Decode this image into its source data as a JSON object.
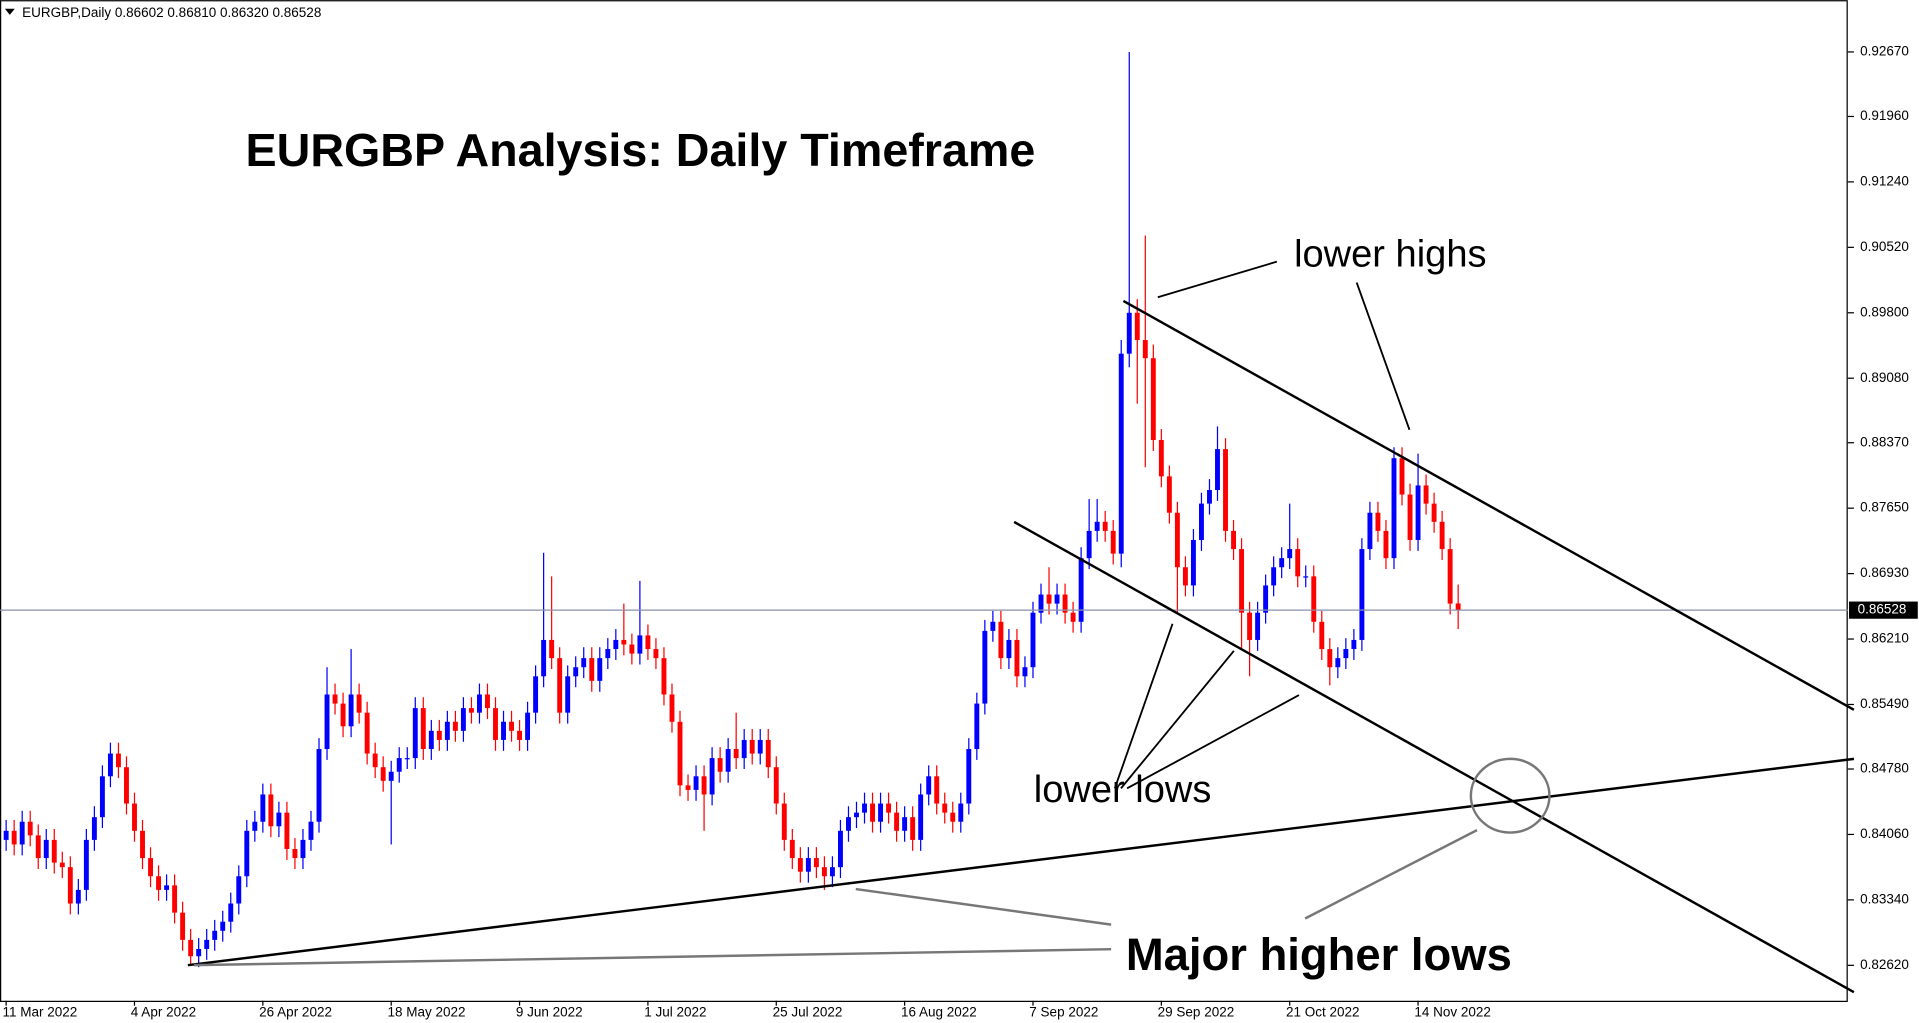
{
  "chart_data": {
    "type": "candlestick",
    "header": "EURGBP,Daily  0.86602 0.86810 0.86320 0.86528",
    "title": "EURGBP Analysis: Daily Timeframe",
    "annotations": [
      "lower highs",
      "lower lows",
      "Major higher lows"
    ],
    "up_color": "#0000ff",
    "down_color": "#ff0000",
    "ylim": [
      0.8223,
      0.9324
    ],
    "yticks": [
      {
        "value": 0.8262,
        "label": "0.82620"
      },
      {
        "value": 0.8334,
        "label": "0.83340"
      },
      {
        "value": 0.8406,
        "label": "0.84060"
      },
      {
        "value": 0.8478,
        "label": "0.84780"
      },
      {
        "value": 0.8549,
        "label": "0.85490"
      },
      {
        "value": 0.8621,
        "label": "0.86210"
      },
      {
        "value": 0.8693,
        "label": "0.86930"
      },
      {
        "value": 0.8765,
        "label": "0.87650"
      },
      {
        "value": 0.8837,
        "label": "0.88370"
      },
      {
        "value": 0.8908,
        "label": "0.89080"
      },
      {
        "value": 0.898,
        "label": "0.89800"
      },
      {
        "value": 0.9052,
        "label": "0.90520"
      },
      {
        "value": 0.9124,
        "label": "0.91240"
      },
      {
        "value": 0.9196,
        "label": "0.91960"
      },
      {
        "value": 0.9267,
        "label": "0.92670"
      }
    ],
    "last_price": 0.86528,
    "categories": [
      "11 Mar 2022",
      null,
      null,
      null,
      null,
      null,
      null,
      null,
      null,
      null,
      null,
      null,
      null,
      null,
      null,
      null,
      "4 Apr 2022",
      null,
      null,
      null,
      null,
      null,
      null,
      null,
      null,
      null,
      null,
      null,
      null,
      null,
      null,
      null,
      "26 Apr 2022",
      null,
      null,
      null,
      null,
      null,
      null,
      null,
      null,
      null,
      null,
      null,
      null,
      null,
      null,
      null,
      "18 May 2022",
      null,
      null,
      null,
      null,
      null,
      null,
      null,
      null,
      null,
      null,
      null,
      null,
      null,
      null,
      null,
      "9 Jun 2022",
      null,
      null,
      null,
      null,
      null,
      null,
      null,
      null,
      null,
      null,
      null,
      null,
      null,
      null,
      null,
      "1 Jul 2022",
      null,
      null,
      null,
      null,
      null,
      null,
      null,
      null,
      null,
      null,
      null,
      null,
      null,
      null,
      null,
      "25 Jul 2022",
      null,
      null,
      null,
      null,
      null,
      null,
      null,
      null,
      null,
      null,
      null,
      null,
      null,
      null,
      null,
      "16 Aug 2022",
      null,
      null,
      null,
      null,
      null,
      null,
      null,
      null,
      null,
      null,
      null,
      null,
      null,
      null,
      null,
      "7 Sep 2022",
      null,
      null,
      null,
      null,
      null,
      null,
      null,
      null,
      null,
      null,
      null,
      null,
      null,
      null,
      null,
      "29 Sep 2022",
      null,
      null,
      null,
      null,
      null,
      null,
      null,
      null,
      null,
      null,
      null,
      null,
      null,
      null,
      null,
      "21 Oct 2022",
      null,
      null,
      null,
      null,
      null,
      null,
      null,
      null,
      null,
      null,
      null,
      null,
      null,
      null,
      null,
      "14 Nov 2022",
      null,
      null,
      null,
      null,
      null
    ],
    "open": [
      0.84,
      0.841,
      0.8395,
      0.842,
      0.8405,
      0.838,
      0.84,
      0.8375,
      0.837,
      0.833,
      0.8345,
      0.84,
      0.8425,
      0.847,
      0.8495,
      0.848,
      0.844,
      0.841,
      0.838,
      0.836,
      0.8345,
      0.835,
      0.832,
      0.829,
      0.8272,
      0.828,
      0.829,
      0.83,
      0.831,
      0.833,
      0.836,
      0.841,
      0.842,
      0.845,
      0.8415,
      0.843,
      0.839,
      0.838,
      0.84,
      0.842,
      0.85,
      0.856,
      0.855,
      0.8525,
      0.856,
      0.854,
      0.8495,
      0.848,
      0.8465,
      0.8475,
      0.849,
      0.849,
      0.8545,
      0.85,
      0.852,
      0.851,
      0.853,
      0.852,
      0.8545,
      0.854,
      0.856,
      0.8545,
      0.851,
      0.853,
      0.852,
      0.851,
      0.854,
      0.858,
      0.862,
      0.86,
      0.854,
      0.858,
      0.859,
      0.86,
      0.8575,
      0.86,
      0.861,
      0.862,
      0.8615,
      0.8605,
      0.8625,
      0.861,
      0.86,
      0.856,
      0.853,
      0.846,
      0.8455,
      0.847,
      0.845,
      0.849,
      0.8475,
      0.85,
      0.849,
      0.851,
      0.8495,
      0.851,
      0.848,
      0.844,
      0.84,
      0.838,
      0.8365,
      0.838,
      0.837,
      0.836,
      0.837,
      0.841,
      0.8425,
      0.843,
      0.844,
      0.842,
      0.844,
      0.843,
      0.841,
      0.8425,
      0.84,
      0.845,
      0.847,
      0.844,
      0.843,
      0.842,
      0.844,
      0.85,
      0.855,
      0.863,
      0.864,
      0.86,
      0.862,
      0.858,
      0.859,
      0.865,
      0.867,
      0.866,
      0.867,
      0.865,
      0.864,
      0.871,
      0.874,
      0.875,
      0.874,
      0.8715,
      0.8935,
      0.898,
      0.895,
      0.893,
      0.884,
      0.88,
      0.876,
      0.87,
      0.868,
      0.873,
      0.877,
      0.8785,
      0.883,
      0.874,
      0.872,
      0.865,
      0.862,
      0.865,
      0.868,
      0.87,
      0.871,
      0.872,
      0.869,
      0.869,
      0.864,
      0.861,
      0.859,
      0.86,
      0.861,
      0.862,
      0.872,
      0.876,
      0.874,
      0.871,
      0.882,
      0.878,
      0.873,
      0.879,
      0.877,
      0.875,
      0.872,
      0.86602
    ],
    "high": [
      0.8422,
      0.8422,
      0.8432,
      0.8432,
      0.8417,
      0.8412,
      0.8412,
      0.8387,
      0.8382,
      0.8357,
      0.8412,
      0.8437,
      0.8482,
      0.8507,
      0.8507,
      0.8492,
      0.8452,
      0.8422,
      0.8392,
      0.8372,
      0.8362,
      0.8362,
      0.8332,
      0.8302,
      0.8292,
      0.8302,
      0.8312,
      0.8322,
      0.8342,
      0.8372,
      0.8422,
      0.8432,
      0.8462,
      0.8462,
      0.8442,
      0.8442,
      0.8402,
      0.8412,
      0.8432,
      0.8512,
      0.859,
      0.8572,
      0.8562,
      0.861,
      0.8572,
      0.8552,
      0.8507,
      0.8492,
      0.8487,
      0.8502,
      0.8502,
      0.8557,
      0.8557,
      0.8532,
      0.8532,
      0.8542,
      0.8542,
      0.8557,
      0.8557,
      0.8572,
      0.8572,
      0.8557,
      0.8542,
      0.8542,
      0.8532,
      0.8552,
      0.8592,
      0.8716,
      0.869,
      0.8612,
      0.8592,
      0.8602,
      0.8612,
      0.8612,
      0.8612,
      0.8622,
      0.8632,
      0.866,
      0.8627,
      0.8685,
      0.8637,
      0.8622,
      0.8612,
      0.8572,
      0.8542,
      0.8472,
      0.8482,
      0.8482,
      0.8502,
      0.8502,
      0.8512,
      0.854,
      0.8522,
      0.8522,
      0.8522,
      0.8522,
      0.8492,
      0.8452,
      0.8412,
      0.8392,
      0.8392,
      0.8392,
      0.8382,
      0.8382,
      0.8422,
      0.8437,
      0.8442,
      0.8452,
      0.8452,
      0.8452,
      0.8452,
      0.8442,
      0.8437,
      0.8437,
      0.8462,
      0.8482,
      0.8482,
      0.8452,
      0.8442,
      0.8452,
      0.8512,
      0.8562,
      0.8642,
      0.8652,
      0.8652,
      0.8632,
      0.8632,
      0.8602,
      0.8662,
      0.8682,
      0.87,
      0.8682,
      0.8682,
      0.8662,
      0.8722,
      0.8775,
      0.8775,
      0.8762,
      0.8752,
      0.895,
      0.9267,
      0.8995,
      0.9065,
      0.8945,
      0.8852,
      0.8812,
      0.8772,
      0.8712,
      0.8742,
      0.8782,
      0.8797,
      0.8855,
      0.8842,
      0.8752,
      0.8732,
      0.8662,
      0.8662,
      0.8692,
      0.8712,
      0.8722,
      0.877,
      0.8732,
      0.8702,
      0.8702,
      0.8652,
      0.8622,
      0.8612,
      0.8622,
      0.8632,
      0.8732,
      0.8772,
      0.8772,
      0.8752,
      0.8832,
      0.8832,
      0.8792,
      0.8825,
      0.8802,
      0.8782,
      0.8762,
      0.8732,
      0.8681
    ],
    "low": [
      0.8388,
      0.8383,
      0.8383,
      0.8393,
      0.8368,
      0.8368,
      0.8363,
      0.8358,
      0.8318,
      0.8318,
      0.8333,
      0.8388,
      0.8413,
      0.8458,
      0.8468,
      0.8428,
      0.8398,
      0.8368,
      0.8348,
      0.8333,
      0.8333,
      0.8308,
      0.8278,
      0.8262,
      0.826,
      0.8268,
      0.8278,
      0.8288,
      0.8298,
      0.8318,
      0.8348,
      0.8398,
      0.8408,
      0.8403,
      0.8403,
      0.8378,
      0.8368,
      0.8368,
      0.8388,
      0.8408,
      0.8488,
      0.8538,
      0.8513,
      0.8513,
      0.8528,
      0.8483,
      0.8468,
      0.8453,
      0.8395,
      0.8463,
      0.8478,
      0.8478,
      0.8488,
      0.8488,
      0.8498,
      0.8498,
      0.8508,
      0.8508,
      0.8528,
      0.8528,
      0.8533,
      0.8498,
      0.8498,
      0.8508,
      0.8498,
      0.8498,
      0.8528,
      0.8568,
      0.8588,
      0.8528,
      0.8528,
      0.8568,
      0.8578,
      0.8563,
      0.8563,
      0.8588,
      0.8598,
      0.8603,
      0.8593,
      0.8593,
      0.8598,
      0.8588,
      0.8548,
      0.8518,
      0.8448,
      0.8443,
      0.8443,
      0.841,
      0.8438,
      0.8463,
      0.8463,
      0.8478,
      0.8478,
      0.8483,
      0.8483,
      0.8468,
      0.8428,
      0.8388,
      0.8368,
      0.8353,
      0.8353,
      0.8358,
      0.8345,
      0.8348,
      0.8358,
      0.8398,
      0.8413,
      0.8418,
      0.8408,
      0.8408,
      0.8418,
      0.8398,
      0.8398,
      0.8388,
      0.8388,
      0.8438,
      0.8428,
      0.8418,
      0.8408,
      0.8408,
      0.8428,
      0.8488,
      0.8538,
      0.8618,
      0.8588,
      0.8588,
      0.8568,
      0.8568,
      0.8578,
      0.8638,
      0.8648,
      0.8648,
      0.8638,
      0.8628,
      0.8628,
      0.8698,
      0.8728,
      0.8728,
      0.8703,
      0.87,
      0.892,
      0.888,
      0.881,
      0.8828,
      0.8788,
      0.8748,
      0.865,
      0.8668,
      0.8668,
      0.8718,
      0.8758,
      0.8773,
      0.8728,
      0.8708,
      0.861,
      0.858,
      0.8608,
      0.8638,
      0.8668,
      0.8688,
      0.8698,
      0.8678,
      0.8678,
      0.8628,
      0.8598,
      0.857,
      0.8578,
      0.8588,
      0.8598,
      0.8608,
      0.8708,
      0.8728,
      0.8698,
      0.8698,
      0.8768,
      0.8718,
      0.8718,
      0.8758,
      0.8738,
      0.8708,
      0.8648,
      0.8632
    ],
    "close": [
      0.841,
      0.8395,
      0.842,
      0.8405,
      0.838,
      0.84,
      0.8375,
      0.837,
      0.833,
      0.8345,
      0.84,
      0.8425,
      0.847,
      0.8495,
      0.848,
      0.844,
      0.841,
      0.838,
      0.836,
      0.8345,
      0.835,
      0.832,
      0.829,
      0.8272,
      0.828,
      0.829,
      0.83,
      0.831,
      0.833,
      0.836,
      0.841,
      0.842,
      0.845,
      0.8415,
      0.843,
      0.839,
      0.838,
      0.84,
      0.842,
      0.85,
      0.856,
      0.855,
      0.8525,
      0.856,
      0.854,
      0.8495,
      0.848,
      0.8465,
      0.8475,
      0.849,
      0.849,
      0.8545,
      0.85,
      0.852,
      0.851,
      0.853,
      0.852,
      0.8545,
      0.854,
      0.856,
      0.8545,
      0.851,
      0.853,
      0.852,
      0.851,
      0.854,
      0.858,
      0.862,
      0.86,
      0.854,
      0.858,
      0.859,
      0.86,
      0.8575,
      0.86,
      0.861,
      0.862,
      0.8615,
      0.8605,
      0.8625,
      0.861,
      0.86,
      0.856,
      0.853,
      0.846,
      0.8455,
      0.847,
      0.845,
      0.849,
      0.8475,
      0.85,
      0.849,
      0.851,
      0.8495,
      0.851,
      0.848,
      0.844,
      0.84,
      0.838,
      0.8365,
      0.838,
      0.837,
      0.836,
      0.837,
      0.841,
      0.8425,
      0.843,
      0.844,
      0.842,
      0.844,
      0.843,
      0.841,
      0.8425,
      0.84,
      0.845,
      0.847,
      0.844,
      0.843,
      0.842,
      0.844,
      0.85,
      0.855,
      0.863,
      0.864,
      0.86,
      0.862,
      0.858,
      0.859,
      0.865,
      0.867,
      0.866,
      0.867,
      0.865,
      0.864,
      0.871,
      0.874,
      0.875,
      0.874,
      0.8715,
      0.8935,
      0.898,
      0.895,
      0.893,
      0.884,
      0.88,
      0.876,
      0.87,
      0.868,
      0.873,
      0.877,
      0.8785,
      0.883,
      0.874,
      0.872,
      0.865,
      0.862,
      0.865,
      0.868,
      0.87,
      0.871,
      0.872,
      0.869,
      0.869,
      0.864,
      0.861,
      0.859,
      0.86,
      0.861,
      0.862,
      0.872,
      0.876,
      0.874,
      0.871,
      0.882,
      0.878,
      0.873,
      0.879,
      0.877,
      0.875,
      0.872,
      0.866,
      0.86528
    ]
  }
}
